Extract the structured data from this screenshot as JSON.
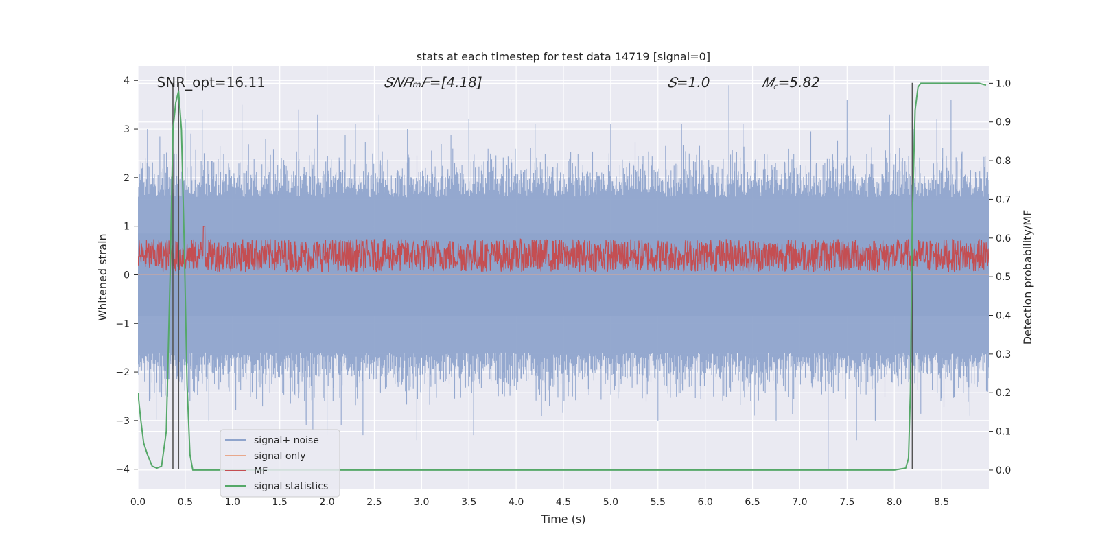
{
  "chart_data": {
    "type": "line",
    "title": "stats at each timestep for test data 14719 [signal=0]",
    "xlabel": "Time (s)",
    "ylabel": "Whitened strain",
    "ylabel_right": "Detection probability/MF",
    "xlim": [
      0.0,
      9.0
    ],
    "ylim": [
      -4.4,
      4.3
    ],
    "ylim_right": [
      -0.048,
      1.045
    ],
    "x_ticks": [
      "0.0",
      "0.5",
      "1.0",
      "1.5",
      "2.0",
      "2.5",
      "3.0",
      "3.5",
      "4.0",
      "4.5",
      "5.0",
      "5.5",
      "6.0",
      "6.5",
      "7.0",
      "7.5",
      "8.0",
      "8.5"
    ],
    "y_ticks": [
      "−4",
      "−3",
      "−2",
      "−1",
      "0",
      "1",
      "2",
      "3",
      "4"
    ],
    "y_ticks_right": [
      "0.0",
      "0.1",
      "0.2",
      "0.3",
      "0.4",
      "0.5",
      "0.6",
      "0.7",
      "0.8",
      "0.9",
      "1.0"
    ],
    "grid": true,
    "legend_position": "lower-left",
    "annotations": [
      {
        "text": "SNR_opt=16.11",
        "x": 0.2,
        "y": 3.95
      },
      {
        "text": "𝑆𝑁𝑅ₘ𝐹=[4.18]",
        "x": 2.6,
        "y": 3.95
      },
      {
        "text": "𝑆=1.0",
        "x": 5.6,
        "y": 3.95
      },
      {
        "text": "𝑀꜀=5.82",
        "x": 6.6,
        "y": 3.95
      }
    ],
    "vertical_lines_x": [
      0.37,
      0.43,
      8.19
    ],
    "series": [
      {
        "name": "signal+ noise",
        "color": "#8fa4cc",
        "axis": "left",
        "style": "dense noise band",
        "envelope_typical": [
          -1.6,
          1.6
        ],
        "spikes": [
          [
            0.05,
            2.3
          ],
          [
            0.1,
            3.0
          ],
          [
            0.12,
            -2.6
          ],
          [
            0.5,
            3.2
          ],
          [
            0.55,
            -2.6
          ],
          [
            0.68,
            3.4
          ],
          [
            0.75,
            -3.0
          ],
          [
            1.1,
            3.5
          ],
          [
            1.35,
            2.8
          ],
          [
            1.7,
            3.4
          ],
          [
            1.78,
            -3.1
          ],
          [
            1.9,
            3.3
          ],
          [
            1.85,
            -3.2
          ],
          [
            2.0,
            -3.3
          ],
          [
            2.15,
            -3.1
          ],
          [
            2.3,
            3.1
          ],
          [
            2.38,
            -3.3
          ],
          [
            2.55,
            3.3
          ],
          [
            2.85,
            3.0
          ],
          [
            2.95,
            -3.4
          ],
          [
            3.5,
            3.2
          ],
          [
            3.55,
            -3.3
          ],
          [
            4.2,
            3.1
          ],
          [
            5.0,
            3.1
          ],
          [
            5.5,
            -3.0
          ],
          [
            5.75,
            3.1
          ],
          [
            6.25,
            3.9
          ],
          [
            6.4,
            3.1
          ],
          [
            6.75,
            -3.0
          ],
          [
            7.3,
            -4.0
          ],
          [
            7.5,
            3.6
          ],
          [
            7.6,
            -3.4
          ],
          [
            7.95,
            3.3
          ],
          [
            8.2,
            3.0
          ],
          [
            8.45,
            3.2
          ],
          [
            8.6,
            3.6
          ],
          [
            8.8,
            -2.9
          ]
        ]
      },
      {
        "name": "signal only",
        "color": "#e8a88c",
        "axis": "left",
        "values_all_zero": true
      },
      {
        "name": "MF",
        "color": "#c44e52",
        "axis": "right",
        "range_typical": [
          0.51,
          0.6
        ],
        "peak": [
          0.7,
          0.63
        ]
      },
      {
        "name": "signal statistics",
        "color": "#55a868",
        "axis": "right",
        "x": [
          0.0,
          0.03,
          0.06,
          0.1,
          0.15,
          0.2,
          0.25,
          0.3,
          0.34,
          0.37,
          0.4,
          0.43,
          0.46,
          0.49,
          0.52,
          0.55,
          0.58,
          0.62,
          0.7,
          1.0,
          2.0,
          3.0,
          4.0,
          5.0,
          6.0,
          7.0,
          7.5,
          8.0,
          8.12,
          8.15,
          8.17,
          8.19,
          8.22,
          8.25,
          8.28,
          8.3,
          8.5,
          8.9,
          8.97
        ],
        "y": [
          0.2,
          0.13,
          0.07,
          0.04,
          0.01,
          0.005,
          0.01,
          0.1,
          0.5,
          0.88,
          0.95,
          0.98,
          0.88,
          0.58,
          0.22,
          0.04,
          0.0,
          0.0,
          0.0,
          0.0,
          0.0,
          0.0,
          0.0,
          0.0,
          0.0,
          0.0,
          0.0,
          0.0,
          0.005,
          0.03,
          0.2,
          0.65,
          0.93,
          0.99,
          1.0,
          1.0,
          1.0,
          1.0,
          0.995
        ]
      }
    ]
  }
}
